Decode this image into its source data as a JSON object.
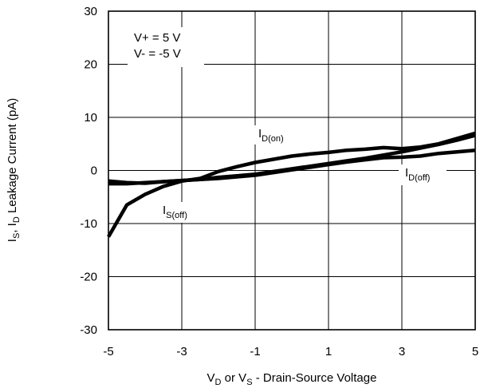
{
  "chart_data": {
    "type": "line",
    "title": "",
    "xlabel": {
      "prefix": "V",
      "sub1": "D",
      "middle": " or V",
      "sub2": "S",
      "suffix": " -  Drain-Source Voltage"
    },
    "ylabel": {
      "p1": "I",
      "sub1": "S",
      "p2": ", I",
      "sub2": "D",
      "p3": " Leakage Current (pA)"
    },
    "xlim": [
      -5,
      5
    ],
    "ylim": [
      -30,
      30
    ],
    "grid": true,
    "x_ticks": [
      -5,
      -3,
      -1,
      1,
      3,
      5
    ],
    "x_tick_labels": [
      "-5",
      "-3",
      "-1",
      "1",
      "3",
      "5"
    ],
    "y_ticks": [
      30,
      20,
      10,
      0,
      -10,
      -20,
      -30
    ],
    "y_tick_labels": [
      "30",
      "20",
      "10",
      "0",
      "-10",
      "-20",
      "-30"
    ],
    "conditions": [
      "V+ = 5 V",
      "V- = -5 V"
    ],
    "annotations": [
      {
        "main": "I",
        "sub": "D(on)"
      },
      {
        "main": "I",
        "sub": "D(off)"
      },
      {
        "main": "I",
        "sub": "S(off)"
      }
    ],
    "series": [
      {
        "x": [
          -5,
          -4.5,
          -4,
          -3.5,
          -3,
          -2.5,
          -2,
          -1.5,
          -1,
          -0.5,
          0,
          0.5,
          1,
          1.5,
          2,
          2.5,
          3,
          3.5,
          4,
          4.5,
          5
        ],
        "values": [
          -12.5,
          -6.5,
          -4.5,
          -3,
          -2,
          -1.5,
          -0.2,
          0.7,
          1.5,
          2.1,
          2.7,
          3.1,
          3.4,
          3.8,
          4,
          4.3,
          4.1,
          4.4,
          5,
          6,
          7
        ]
      },
      {
        "x": [
          -5,
          -4.5,
          -4,
          -3.5,
          -3,
          -2.5,
          -2,
          -1.5,
          -1,
          -0.5,
          0,
          0.5,
          1,
          1.5,
          2,
          2.5,
          3,
          3.5,
          4,
          4.5,
          5
        ],
        "values": [
          -2,
          -2.3,
          -2.4,
          -2.1,
          -1.9,
          -1.7,
          -1.5,
          -1.2,
          -0.9,
          -0.4,
          0.1,
          0.6,
          1.1,
          1.6,
          2,
          2.4,
          2.5,
          2.7,
          3.2,
          3.5,
          3.8
        ]
      },
      {
        "x": [
          -5,
          -4.5,
          -4,
          -3.5,
          -3,
          -2.5,
          -2,
          -1.5,
          -1,
          -0.5,
          0,
          0.5,
          1,
          1.5,
          2,
          2.5,
          3,
          3.5,
          4,
          4.5,
          5
        ],
        "values": [
          -2.5,
          -2.5,
          -2.3,
          -2.1,
          -1.9,
          -1.7,
          -1.3,
          -1,
          -0.7,
          -0.2,
          0.3,
          0.8,
          1.3,
          1.8,
          2.3,
          2.9,
          3.5,
          4.2,
          4.9,
          5.7,
          6.6
        ]
      }
    ]
  }
}
